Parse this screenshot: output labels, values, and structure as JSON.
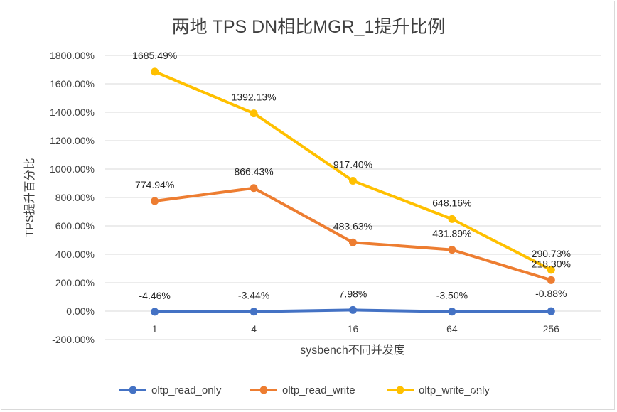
{
  "chart_data": {
    "type": "line",
    "title": "两地 TPS DN相比MGR_1提升比例",
    "xlabel": "sysbench不同并发度",
    "ylabel": "TPS提升百分比",
    "categories": [
      "1",
      "4",
      "16",
      "64",
      "256"
    ],
    "ylim": [
      -200,
      1800
    ],
    "ytick_step": 200,
    "y_tick_labels": [
      "-200.00%",
      "0.00%",
      "200.00%",
      "400.00%",
      "600.00%",
      "800.00%",
      "1000.00%",
      "1200.00%",
      "1400.00%",
      "1600.00%",
      "1800.00%"
    ],
    "grid": "horizontal",
    "legend_position": "bottom",
    "series": [
      {
        "name": "oltp_read_only",
        "color": "#4472c4",
        "values": [
          -4.46,
          -3.44,
          7.98,
          -3.5,
          -0.88
        ],
        "labels": [
          "-4.46%",
          "-3.44%",
          "7.98%",
          "-3.50%",
          "-0.88%"
        ]
      },
      {
        "name": "oltp_read_write",
        "color": "#ed7d31",
        "values": [
          774.94,
          866.43,
          483.63,
          431.89,
          218.3
        ],
        "labels": [
          "774.94%",
          "866.43%",
          "483.63%",
          "431.89%",
          "218.30%"
        ]
      },
      {
        "name": "oltp_write_only",
        "color": "#ffc000",
        "values": [
          1685.49,
          1392.13,
          917.4,
          648.16,
          290.73
        ],
        "labels": [
          "1685.49%",
          "1392.13%",
          "917.40%",
          "648.16%",
          "290.73%"
        ]
      }
    ],
    "watermark": "知乎 @PolarDB-X"
  }
}
